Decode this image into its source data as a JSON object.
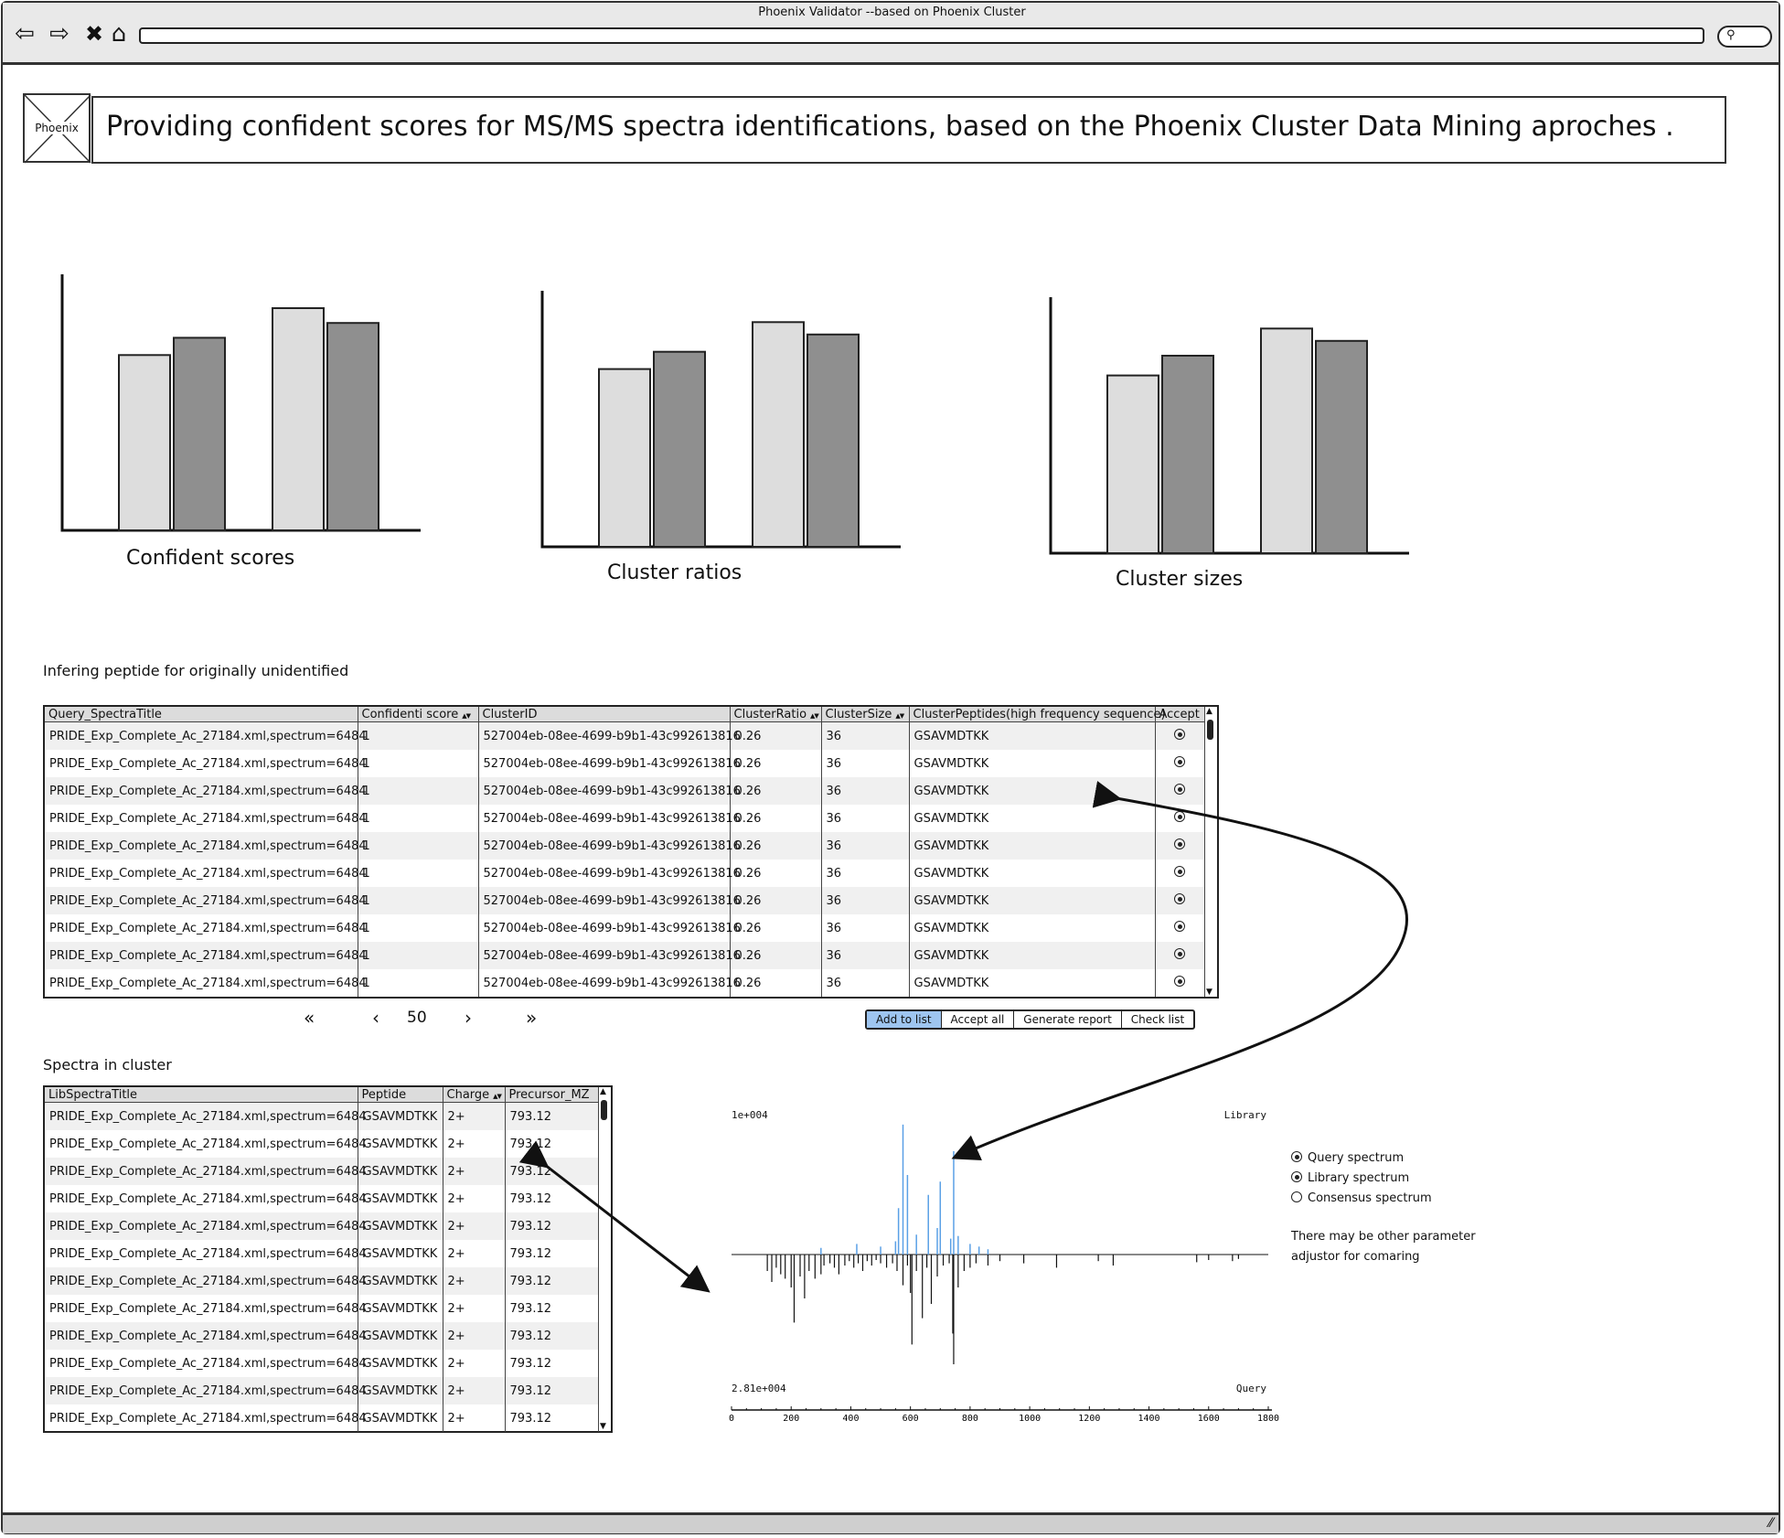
{
  "window": {
    "title": "Phoenix Validator  --based on Phoenix Cluster"
  },
  "header": {
    "logo_text": "Phoenix",
    "banner": "Providing confident scores for  MS/MS spectra identifications, based on the Phoenix Cluster Data Mining aproches ."
  },
  "charts": [
    {
      "label": "Confident scores"
    },
    {
      "label": "Cluster ratios"
    },
    {
      "label": "Cluster sizes"
    }
  ],
  "chart_data": [
    {
      "type": "bar",
      "title": "Confident scores",
      "categories": [
        "",
        ""
      ],
      "series": [
        {
          "color": "#dddddd",
          "values": [
            0.71,
            0.9
          ]
        },
        {
          "color": "#8f8f8f",
          "values": [
            0.78,
            0.84
          ]
        }
      ],
      "ylim": [
        0,
        1
      ]
    },
    {
      "type": "bar",
      "title": "Cluster ratios",
      "categories": [
        "",
        ""
      ],
      "series": [
        {
          "color": "#dddddd",
          "values": [
            0.72,
            0.91
          ]
        },
        {
          "color": "#8f8f8f",
          "values": [
            0.79,
            0.86
          ]
        }
      ],
      "ylim": [
        0,
        1
      ]
    },
    {
      "type": "bar",
      "title": "Cluster sizes",
      "categories": [
        "",
        ""
      ],
      "series": [
        {
          "color": "#dddddd",
          "values": [
            0.72,
            0.91
          ]
        },
        {
          "color": "#8f8f8f",
          "values": [
            0.8,
            0.86
          ]
        }
      ],
      "ylim": [
        0,
        1
      ]
    }
  ],
  "infer_section": {
    "title": "Infering peptide for originally unidentified",
    "columns": [
      "Query_SpectraTitle",
      "Confidenti score",
      "ClusterID",
      "ClusterRatio",
      "ClusterSize",
      "ClusterPeptides(high frequency sequence)",
      "Accept"
    ],
    "sortable": [
      false,
      true,
      false,
      true,
      true,
      false,
      false
    ],
    "rows": [
      [
        "PRIDE_Exp_Complete_Ac_27184.xml,spectrum=6484",
        "1",
        "527004eb-08ee-4699-b9b1-43c992613816",
        "0.26",
        "36",
        "GSAVMDTKK"
      ],
      [
        "PRIDE_Exp_Complete_Ac_27184.xml,spectrum=6484",
        "1",
        "527004eb-08ee-4699-b9b1-43c992613816",
        "0.26",
        "36",
        "GSAVMDTKK"
      ],
      [
        "PRIDE_Exp_Complete_Ac_27184.xml,spectrum=6484",
        "1",
        "527004eb-08ee-4699-b9b1-43c992613816",
        "0.26",
        "36",
        "GSAVMDTKK"
      ],
      [
        "PRIDE_Exp_Complete_Ac_27184.xml,spectrum=6484",
        "1",
        "527004eb-08ee-4699-b9b1-43c992613816",
        "0.26",
        "36",
        "GSAVMDTKK"
      ],
      [
        "PRIDE_Exp_Complete_Ac_27184.xml,spectrum=6484",
        "1",
        "527004eb-08ee-4699-b9b1-43c992613816",
        "0.26",
        "36",
        "GSAVMDTKK"
      ],
      [
        "PRIDE_Exp_Complete_Ac_27184.xml,spectrum=6484",
        "1",
        "527004eb-08ee-4699-b9b1-43c992613816",
        "0.26",
        "36",
        "GSAVMDTKK"
      ],
      [
        "PRIDE_Exp_Complete_Ac_27184.xml,spectrum=6484",
        "1",
        "527004eb-08ee-4699-b9b1-43c992613816",
        "0.26",
        "36",
        "GSAVMDTKK"
      ],
      [
        "PRIDE_Exp_Complete_Ac_27184.xml,spectrum=6484",
        "1",
        "527004eb-08ee-4699-b9b1-43c992613816",
        "0.26",
        "36",
        "GSAVMDTKK"
      ],
      [
        "PRIDE_Exp_Complete_Ac_27184.xml,spectrum=6484",
        "1",
        "527004eb-08ee-4699-b9b1-43c992613816",
        "0.26",
        "36",
        "GSAVMDTKK"
      ],
      [
        "PRIDE_Exp_Complete_Ac_27184.xml,spectrum=6484",
        "1",
        "527004eb-08ee-4699-b9b1-43c992613816",
        "0.26",
        "36",
        "GSAVMDTKK"
      ]
    ],
    "pager": {
      "first": "«",
      "prev": "‹",
      "page": "50",
      "next": "›",
      "last": "»"
    },
    "buttons": [
      "Add to list",
      "Accept all",
      "Generate  report",
      "Check list"
    ],
    "active_button": 0
  },
  "cluster_section": {
    "title": "Spectra in cluster",
    "columns": [
      "LibSpectraTitle",
      "Peptide",
      "Charge",
      "Precursor_MZ"
    ],
    "sortable": [
      false,
      false,
      true,
      false
    ],
    "rows": [
      [
        "PRIDE_Exp_Complete_Ac_27184.xml,spectrum=6484",
        "GSAVMDTKK",
        "2+",
        "793.12"
      ],
      [
        "PRIDE_Exp_Complete_Ac_27184.xml,spectrum=6484",
        "GSAVMDTKK",
        "2+",
        "793.12"
      ],
      [
        "PRIDE_Exp_Complete_Ac_27184.xml,spectrum=6484",
        "GSAVMDTKK",
        "2+",
        "793.12"
      ],
      [
        "PRIDE_Exp_Complete_Ac_27184.xml,spectrum=6484",
        "GSAVMDTKK",
        "2+",
        "793.12"
      ],
      [
        "PRIDE_Exp_Complete_Ac_27184.xml,spectrum=6484",
        "GSAVMDTKK",
        "2+",
        "793.12"
      ],
      [
        "PRIDE_Exp_Complete_Ac_27184.xml,spectrum=6484",
        "GSAVMDTKK",
        "2+",
        "793.12"
      ],
      [
        "PRIDE_Exp_Complete_Ac_27184.xml,spectrum=6484",
        "GSAVMDTKK",
        "2+",
        "793.12"
      ],
      [
        "PRIDE_Exp_Complete_Ac_27184.xml,spectrum=6484",
        "GSAVMDTKK",
        "2+",
        "793.12"
      ],
      [
        "PRIDE_Exp_Complete_Ac_27184.xml,spectrum=6484",
        "GSAVMDTKK",
        "2+",
        "793.12"
      ],
      [
        "PRIDE_Exp_Complete_Ac_27184.xml,spectrum=6484",
        "GSAVMDTKK",
        "2+",
        "793.12"
      ],
      [
        "PRIDE_Exp_Complete_Ac_27184.xml,spectrum=6484",
        "GSAVMDTKK",
        "2+",
        "793.12"
      ],
      [
        "PRIDE_Exp_Complete_Ac_27184.xml,spectrum=6484",
        "GSAVMDTKK",
        "2+",
        "793.12"
      ]
    ]
  },
  "spectrum": {
    "top_left": "1e+004",
    "top_right": "Library",
    "bottom_left": "2.81e+004",
    "bottom_right": "Query",
    "x_ticks": [
      "0",
      "200",
      "400",
      "600",
      "800",
      "1000",
      "1200",
      "1400",
      "1600",
      "1800"
    ],
    "xlim": [
      0,
      1800
    ],
    "library_color": "#5aa0e6",
    "query_color": "#111111",
    "library_peaks": [
      [
        300,
        0.05
      ],
      [
        420,
        0.08
      ],
      [
        500,
        0.06
      ],
      [
        550,
        0.1
      ],
      [
        560,
        0.35
      ],
      [
        575,
        0.98
      ],
      [
        590,
        0.6
      ],
      [
        620,
        0.15
      ],
      [
        660,
        0.45
      ],
      [
        690,
        0.2
      ],
      [
        700,
        0.55
      ],
      [
        735,
        0.12
      ],
      [
        745,
        0.78
      ],
      [
        760,
        0.14
      ],
      [
        800,
        0.08
      ],
      [
        830,
        0.06
      ],
      [
        860,
        0.04
      ]
    ],
    "query_peaks": [
      [
        120,
        0.15
      ],
      [
        135,
        0.25
      ],
      [
        150,
        0.12
      ],
      [
        165,
        0.18
      ],
      [
        180,
        0.22
      ],
      [
        200,
        0.3
      ],
      [
        210,
        0.62
      ],
      [
        230,
        0.2
      ],
      [
        245,
        0.4
      ],
      [
        260,
        0.15
      ],
      [
        280,
        0.22
      ],
      [
        300,
        0.18
      ],
      [
        310,
        0.1
      ],
      [
        330,
        0.08
      ],
      [
        345,
        0.12
      ],
      [
        360,
        0.18
      ],
      [
        380,
        0.1
      ],
      [
        395,
        0.06
      ],
      [
        410,
        0.12
      ],
      [
        425,
        0.08
      ],
      [
        440,
        0.15
      ],
      [
        455,
        0.06
      ],
      [
        470,
        0.1
      ],
      [
        485,
        0.05
      ],
      [
        500,
        0.08
      ],
      [
        520,
        0.12
      ],
      [
        540,
        0.08
      ],
      [
        555,
        0.15
      ],
      [
        575,
        0.28
      ],
      [
        590,
        0.1
      ],
      [
        600,
        0.35
      ],
      [
        605,
        0.82
      ],
      [
        620,
        0.15
      ],
      [
        640,
        0.58
      ],
      [
        655,
        0.12
      ],
      [
        670,
        0.45
      ],
      [
        690,
        0.2
      ],
      [
        710,
        0.1
      ],
      [
        730,
        0.08
      ],
      [
        742,
        0.72
      ],
      [
        745,
        1.0
      ],
      [
        760,
        0.3
      ],
      [
        780,
        0.15
      ],
      [
        800,
        0.12
      ],
      [
        820,
        0.08
      ],
      [
        860,
        0.1
      ],
      [
        900,
        0.06
      ],
      [
        980,
        0.08
      ],
      [
        1090,
        0.12
      ],
      [
        1230,
        0.06
      ],
      [
        1280,
        0.1
      ],
      [
        1560,
        0.07
      ],
      [
        1600,
        0.05
      ],
      [
        1680,
        0.06
      ],
      [
        1700,
        0.04
      ]
    ]
  },
  "spectrum_options": {
    "items": [
      {
        "label": "Query spectrum",
        "selected": true
      },
      {
        "label": "Library spectrum",
        "selected": true
      },
      {
        "label": "Consensus spectrum",
        "selected": false
      }
    ],
    "note_line1": "There may be other parameter",
    "note_line2": "adjustor for comaring"
  }
}
